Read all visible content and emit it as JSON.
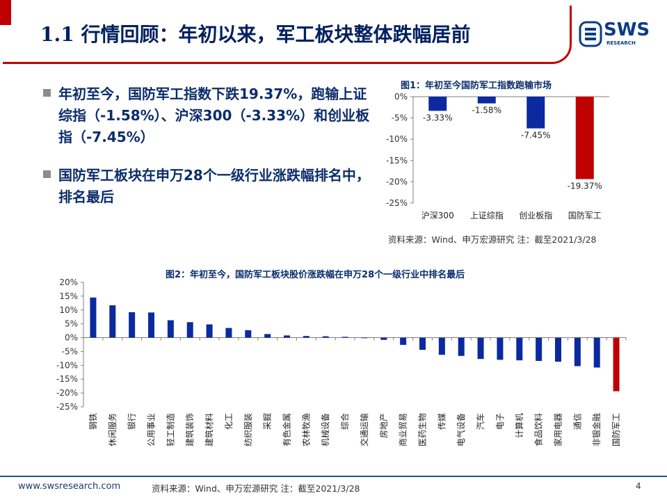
{
  "header": {
    "title": "1.1 行情回顾：年初以来，军工板块整体跌幅居前",
    "logo_text": "SWS",
    "logo_sub": "RESEARCH"
  },
  "bullets": [
    {
      "text": "年初至今，国防军工指数下跌19.37%，跑输上证综指（-1.58%）、沪深300（-3.33%）和创业板指（-7.45%）"
    },
    {
      "text": "国防军工板块在申万28个一级行业涨跌幅排名中，排名最后"
    }
  ],
  "chart1_source": "资料来源：Wind、申万宏源研究   注：截至2021/3/28",
  "colors": {
    "blue": "#0b2aa0",
    "red": "#c00000",
    "navy": "#0b2d6b",
    "title_red": "#c00000"
  },
  "chart_data": [
    {
      "type": "bar",
      "title": "图1：年初至今国防军工指数跑输市场",
      "categories": [
        "沪深300",
        "上证综指",
        "创业板指",
        "国防军工"
      ],
      "values": [
        -3.33,
        -1.58,
        -7.45,
        -19.37
      ],
      "data_labels": [
        "-3.33%",
        "-1.58%",
        "-7.45%",
        "-19.37%"
      ],
      "ylim": [
        -25,
        0
      ],
      "yticks": [
        "0%",
        "-5%",
        "-10%",
        "-15%",
        "-20%",
        "-25%"
      ],
      "xlabel": "",
      "ylabel": "",
      "highlight": "国防军工"
    },
    {
      "type": "bar",
      "title": "图2：年初至今，国防军工板块股价涨跌幅在申万28个一级行业中排名最后",
      "categories": [
        "钢铁",
        "休闲服务",
        "银行",
        "公用事业",
        "轻工制造",
        "建筑装饰",
        "建筑材料",
        "化工",
        "纺织服装",
        "采掘",
        "有色金属",
        "农林牧渔",
        "机械设备",
        "综合",
        "交通运输",
        "房地产",
        "商业贸易",
        "医药生物",
        "传媒",
        "电气设备",
        "汽车",
        "电子",
        "计算机",
        "食品饮料",
        "家用电器",
        "通信",
        "非银金融",
        "国防军工"
      ],
      "values": [
        14.5,
        11.7,
        9.2,
        9.1,
        6.3,
        5.6,
        4.8,
        3.5,
        2.7,
        1.3,
        0.8,
        0.6,
        0.5,
        0.3,
        -0.2,
        -0.8,
        -2.6,
        -4.4,
        -6.2,
        -6.6,
        -7.7,
        -8.0,
        -8.2,
        -8.4,
        -8.7,
        -10.3,
        -10.8,
        -19.37
      ],
      "ylim": [
        -25,
        20
      ],
      "yticks": [
        "20%",
        "15%",
        "10%",
        "5%",
        "0%",
        "-5%",
        "-10%",
        "-15%",
        "-20%",
        "-25%"
      ],
      "xlabel": "",
      "ylabel": "",
      "source": "资料来源：Wind、申万宏源研究   注：截至2021/3/28",
      "highlight": "国防军工"
    }
  ],
  "footer": {
    "url": "www.swsresearch.com",
    "source": "资料来源：Wind、申万宏源研究   注：截至2021/3/28",
    "page": "4"
  }
}
